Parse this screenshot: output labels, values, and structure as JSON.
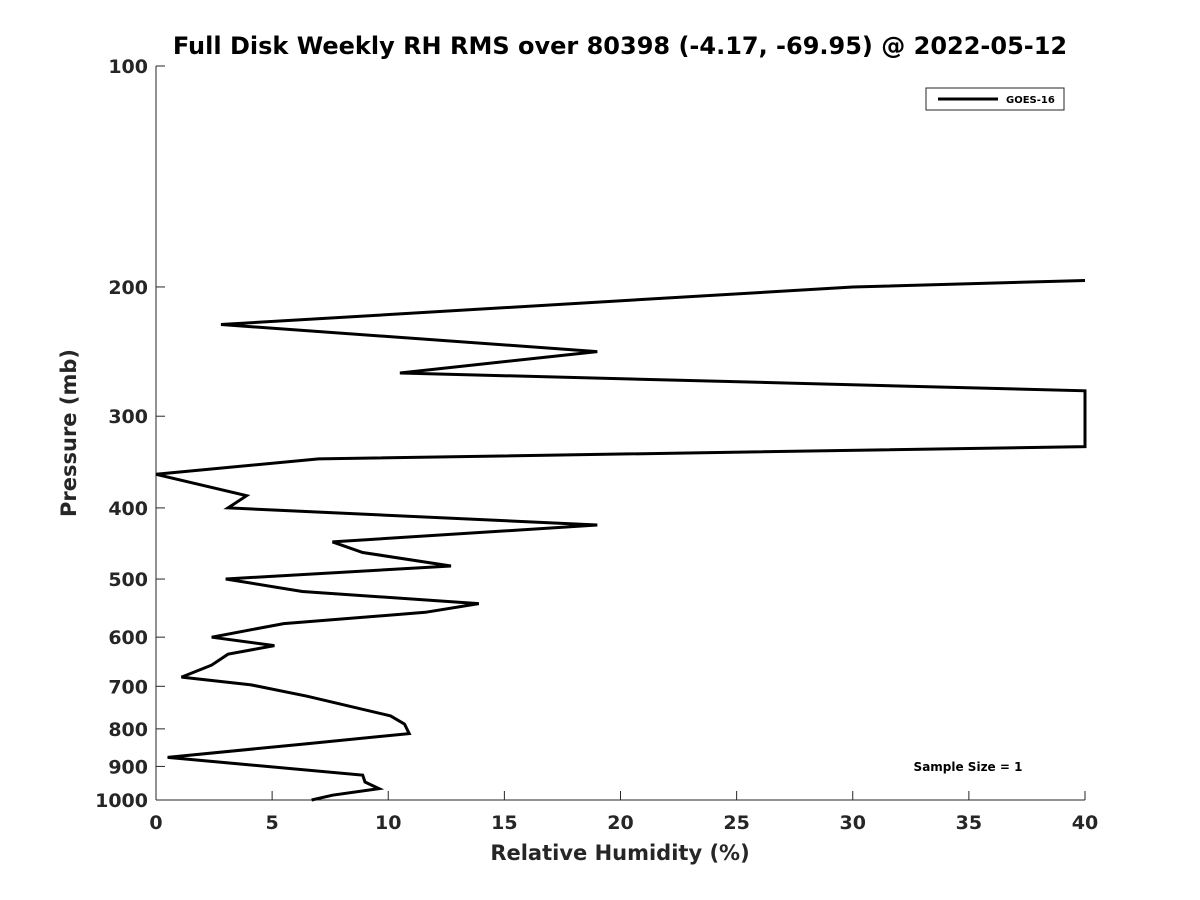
{
  "chart_data": {
    "type": "line",
    "title": "Full Disk Weekly RH RMS over 80398 (-4.17, -69.95) @ 2022-05-12",
    "xlabel": "Relative Humidity (%)",
    "ylabel": "Pressure (mb)",
    "xlim": [
      0,
      40
    ],
    "ylim": [
      100,
      1000
    ],
    "yscale": "log",
    "y_reversed": true,
    "grid": false,
    "legend_position": "top-right",
    "x_ticks": [
      0,
      5,
      10,
      15,
      20,
      25,
      30,
      35,
      40
    ],
    "y_ticks": [
      100,
      200,
      300,
      400,
      500,
      600,
      700,
      800,
      900,
      1000
    ],
    "series": [
      {
        "name": "GOES-16",
        "color": "#000000",
        "points": [
          {
            "x": 6.7,
            "y": 1000
          },
          {
            "x": 7.6,
            "y": 985
          },
          {
            "x": 9.6,
            "y": 965
          },
          {
            "x": 9.0,
            "y": 945
          },
          {
            "x": 8.9,
            "y": 925
          },
          {
            "x": 0.5,
            "y": 875
          },
          {
            "x": 6.5,
            "y": 838
          },
          {
            "x": 10.9,
            "y": 812
          },
          {
            "x": 10.7,
            "y": 788
          },
          {
            "x": 10.1,
            "y": 768
          },
          {
            "x": 6.5,
            "y": 722
          },
          {
            "x": 4.1,
            "y": 697
          },
          {
            "x": 1.1,
            "y": 680
          },
          {
            "x": 2.4,
            "y": 655
          },
          {
            "x": 3.1,
            "y": 633
          },
          {
            "x": 5.1,
            "y": 616
          },
          {
            "x": 2.4,
            "y": 600
          },
          {
            "x": 5.5,
            "y": 575
          },
          {
            "x": 11.6,
            "y": 555
          },
          {
            "x": 13.9,
            "y": 540
          },
          {
            "x": 6.3,
            "y": 520
          },
          {
            "x": 3.0,
            "y": 500
          },
          {
            "x": 12.7,
            "y": 480
          },
          {
            "x": 8.9,
            "y": 460
          },
          {
            "x": 7.6,
            "y": 445
          },
          {
            "x": 19.0,
            "y": 422
          },
          {
            "x": 3.1,
            "y": 400
          },
          {
            "x": 3.9,
            "y": 385
          },
          {
            "x": 0.0,
            "y": 360
          },
          {
            "x": 7.0,
            "y": 343
          },
          {
            "x": 40.0,
            "y": 330
          },
          {
            "x": 40.0,
            "y": 277
          },
          {
            "x": 10.5,
            "y": 262
          },
          {
            "x": 19.0,
            "y": 245
          },
          {
            "x": 2.8,
            "y": 225
          },
          {
            "x": 30.0,
            "y": 200
          },
          {
            "x": 40.0,
            "y": 196
          }
        ]
      }
    ],
    "annotations": [
      "Sample Size = 1"
    ]
  }
}
